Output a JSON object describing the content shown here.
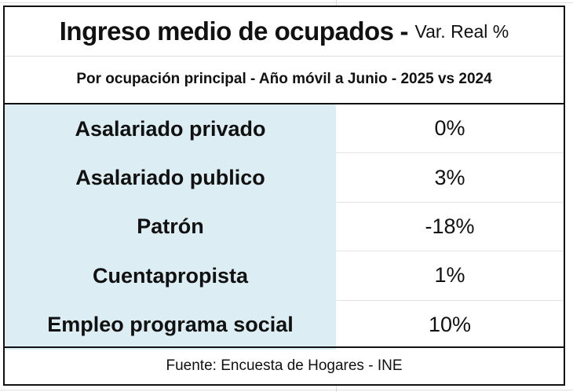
{
  "title": {
    "main": "Ingreso medio de ocupados",
    "separator": "-",
    "suffix": "Var. Real %"
  },
  "subtitle": "Por ocupación principal - Año móvil a Junio - 2025 vs 2024",
  "rows": [
    {
      "label": "Asalariado privado",
      "value": "0%"
    },
    {
      "label": "Asalariado publico",
      "value": "3%"
    },
    {
      "label": "Patrón",
      "value": "-18%"
    },
    {
      "label": "Cuentapropista",
      "value": "1%"
    },
    {
      "label": "Empleo programa social",
      "value": "10%"
    }
  ],
  "footer": "Fuente: Encuesta de Hogares - INE",
  "colors": {
    "label_fill": "#dcedf3",
    "border": "#111111"
  }
}
